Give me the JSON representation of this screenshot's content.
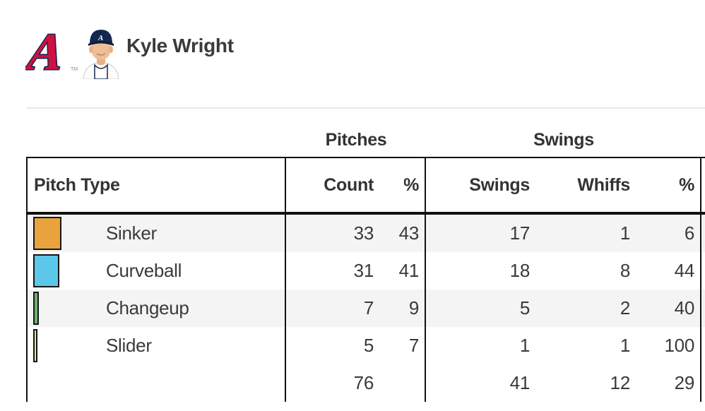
{
  "header": {
    "player_name": "Kyle Wright",
    "team": "Atlanta Braves",
    "team_colors": {
      "red": "#CE1141",
      "navy": "#13274F"
    },
    "logo_tm": "TM"
  },
  "table": {
    "group_headers": {
      "pitches": "Pitches",
      "swings": "Swings"
    },
    "columns": {
      "pitch_type": "Pitch Type",
      "count": "Count",
      "count_pct": "%",
      "swings": "Swings",
      "whiffs": "Whiffs",
      "whiff_pct": "%"
    },
    "rows": [
      {
        "pitch": "Sinker",
        "color": "#E9A33C",
        "count": "33",
        "count_pct": "43",
        "swings": "17",
        "whiffs": "1",
        "whiff_pct": "6"
      },
      {
        "pitch": "Curveball",
        "color": "#5CC7E8",
        "count": "31",
        "count_pct": "41",
        "swings": "18",
        "whiffs": "8",
        "whiff_pct": "44"
      },
      {
        "pitch": "Changeup",
        "color": "#68B36B",
        "count": "7",
        "count_pct": "9",
        "swings": "5",
        "whiffs": "2",
        "whiff_pct": "40"
      },
      {
        "pitch": "Slider",
        "color": "#F0E487",
        "count": "5",
        "count_pct": "7",
        "swings": "1",
        "whiffs": "1",
        "whiff_pct": "100"
      }
    ],
    "totals": {
      "count": "76",
      "swings": "41",
      "whiffs": "12",
      "whiff_pct": "29"
    }
  }
}
